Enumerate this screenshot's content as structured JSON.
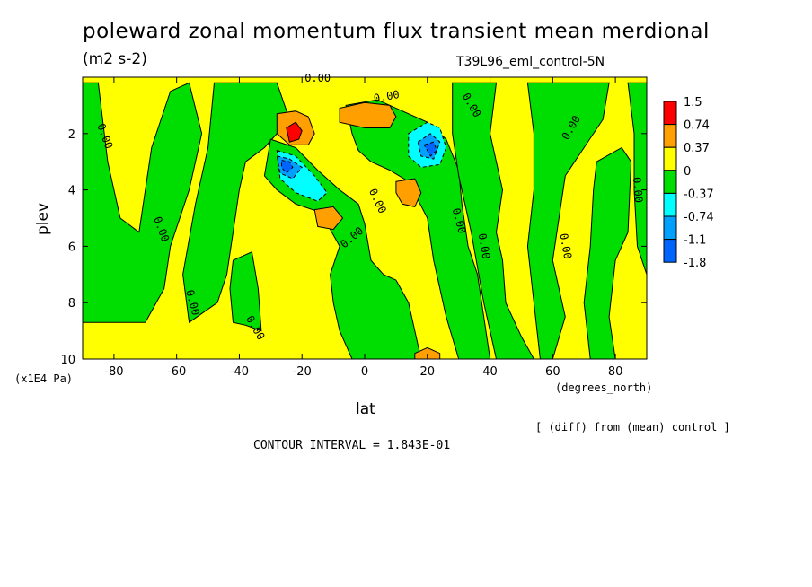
{
  "title": "poleward zonal momentum flux transient mean merdional",
  "units": "(m2 s-2)",
  "run_name": "T39L96_eml_control-5N",
  "y_units": "(x1E4 Pa)",
  "x_units": "(degrees_north)",
  "diff_note": "[ (diff) from (mean) control ]",
  "contour_interval": "CONTOUR INTERVAL = 1.843E-01",
  "chart_data": {
    "type": "heatmap",
    "title": "poleward zonal momentum flux transient mean merdional",
    "xlabel": "lat",
    "ylabel": "plev",
    "xlim": [
      -90,
      90
    ],
    "ylim": [
      10,
      0
    ],
    "x_ticks": [
      -80,
      -60,
      -40,
      -20,
      0,
      20,
      40,
      60,
      80
    ],
    "y_ticks": [
      2,
      4,
      6,
      8,
      10
    ],
    "colorbar": {
      "levels": [
        "1.5",
        "0.74",
        "0.37",
        "0",
        "-0.37",
        "-0.74",
        "-1.1",
        "-1.8"
      ],
      "colors": [
        "#ff0000",
        "#ffa000",
        "#ffff00",
        "#00dd00",
        "#00ffff",
        "#00a0ff",
        "#0064ff",
        "#ffffff"
      ],
      "boxes": [
        {
          "color": "#ff0000"
        },
        {
          "color": "#ffa000"
        },
        {
          "color": "#ffff00"
        },
        {
          "color": "#00dd00"
        },
        {
          "color": "#00ffff"
        },
        {
          "color": "#00a0ff"
        },
        {
          "color": "#0064ff"
        }
      ]
    },
    "regions": [
      {
        "level": "lt0",
        "color": "#00dd00",
        "poly": [
          [
            -90,
            0.2
          ],
          [
            -85,
            0.2
          ],
          [
            -82,
            3
          ],
          [
            -78,
            5
          ],
          [
            -72,
            5.5
          ],
          [
            -68,
            2.5
          ],
          [
            -62,
            0.5
          ],
          [
            -56,
            0.2
          ],
          [
            -52,
            2
          ],
          [
            -56,
            4
          ],
          [
            -62,
            6
          ],
          [
            -64,
            7.5
          ],
          [
            -70,
            8.7
          ],
          [
            -90,
            8.7
          ]
        ]
      },
      {
        "level": "lt0",
        "color": "#00dd00",
        "poly": [
          [
            -48,
            0.2
          ],
          [
            -28,
            0.2
          ],
          [
            -24,
            1.5
          ],
          [
            -32,
            2.5
          ],
          [
            -38,
            3
          ],
          [
            -40,
            4
          ],
          [
            -42,
            5.5
          ],
          [
            -44,
            7
          ],
          [
            -47,
            8
          ],
          [
            -56,
            8.7
          ],
          [
            -58,
            7
          ],
          [
            -54,
            4.5
          ],
          [
            -50,
            2.5
          ]
        ]
      },
      {
        "level": "lt0",
        "color": "#00dd00",
        "poly": [
          [
            -42,
            6.5
          ],
          [
            -36,
            6.2
          ],
          [
            -34,
            7.5
          ],
          [
            -33,
            9
          ],
          [
            -38,
            8.8
          ],
          [
            -42,
            8.7
          ],
          [
            -43,
            7.5
          ]
        ]
      },
      {
        "level": "lt0",
        "color": "#00dd00",
        "poly": [
          [
            -30,
            2.2
          ],
          [
            -22,
            2.5
          ],
          [
            -15,
            3.3
          ],
          [
            -8,
            4
          ],
          [
            -2,
            4.5
          ],
          [
            0,
            5.2
          ],
          [
            2,
            6.5
          ],
          [
            6,
            7
          ],
          [
            10,
            7.2
          ],
          [
            14,
            8
          ],
          [
            16,
            9
          ],
          [
            18,
            10
          ],
          [
            -4,
            10
          ],
          [
            -8,
            9
          ],
          [
            -10,
            8
          ],
          [
            -11,
            7
          ],
          [
            -8,
            6
          ],
          [
            -14,
            4.8
          ],
          [
            -22,
            4.5
          ],
          [
            -28,
            4
          ],
          [
            -32,
            3.5
          ]
        ]
      },
      {
        "level": "lt0",
        "color": "#00dd00",
        "poly": [
          [
            -6,
            1
          ],
          [
            4,
            0.8
          ],
          [
            12,
            1.2
          ],
          [
            20,
            1.6
          ],
          [
            26,
            2.2
          ],
          [
            30,
            3.3
          ],
          [
            31,
            4.5
          ],
          [
            33,
            6
          ],
          [
            36,
            7
          ],
          [
            38,
            8.5
          ],
          [
            40,
            10
          ],
          [
            30,
            10
          ],
          [
            26,
            8.5
          ],
          [
            22,
            6.5
          ],
          [
            20,
            5
          ],
          [
            14,
            3.7
          ],
          [
            8,
            3.3
          ],
          [
            2,
            3
          ],
          [
            -2,
            2.6
          ],
          [
            -4,
            2
          ]
        ]
      },
      {
        "level": "lt0",
        "color": "#00dd00",
        "poly": [
          [
            28,
            0.2
          ],
          [
            42,
            0.2
          ],
          [
            40,
            2
          ],
          [
            44,
            4
          ],
          [
            42,
            5.5
          ],
          [
            44,
            6.5
          ],
          [
            45,
            8
          ],
          [
            50,
            9.2
          ],
          [
            54,
            10
          ],
          [
            42,
            10
          ],
          [
            38,
            8
          ],
          [
            34,
            5.5
          ],
          [
            30,
            3.5
          ],
          [
            28,
            2
          ]
        ]
      },
      {
        "level": "lt0",
        "color": "#00dd00",
        "poly": [
          [
            52,
            0.2
          ],
          [
            78,
            0.2
          ],
          [
            76,
            1.5
          ],
          [
            70,
            2.5
          ],
          [
            64,
            3.5
          ],
          [
            62,
            5
          ],
          [
            60,
            6.5
          ],
          [
            62,
            7.5
          ],
          [
            64,
            8.5
          ],
          [
            60,
            10
          ],
          [
            56,
            10
          ],
          [
            54,
            8
          ],
          [
            52,
            6
          ],
          [
            54,
            4
          ],
          [
            54,
            2
          ]
        ]
      },
      {
        "level": "lt0",
        "color": "#00dd00",
        "poly": [
          [
            74,
            3
          ],
          [
            82,
            2.5
          ],
          [
            85,
            3
          ],
          [
            84,
            5.5
          ],
          [
            80,
            6.5
          ],
          [
            78,
            8.5
          ],
          [
            80,
            10
          ],
          [
            72,
            10
          ],
          [
            70,
            8
          ],
          [
            72,
            6
          ],
          [
            73,
            4
          ]
        ]
      },
      {
        "level": "lt0",
        "color": "#00dd00",
        "poly": [
          [
            84,
            0.2
          ],
          [
            90,
            0.2
          ],
          [
            90,
            7
          ],
          [
            87,
            6
          ],
          [
            86,
            4
          ],
          [
            86,
            2
          ]
        ]
      },
      {
        "level": "lt_neg037",
        "color": "#00ffff",
        "poly": [
          [
            -28,
            2.6
          ],
          [
            -22,
            2.8
          ],
          [
            -16,
            3.5
          ],
          [
            -12,
            4.1
          ],
          [
            -15,
            4.4
          ],
          [
            -22,
            4.1
          ],
          [
            -27,
            3.6
          ]
        ]
      },
      {
        "level": "lt_neg074",
        "color": "#00a0ff",
        "poly": [
          [
            -28,
            2.8
          ],
          [
            -24,
            2.9
          ],
          [
            -20,
            3.2
          ],
          [
            -23,
            3.6
          ],
          [
            -27,
            3.4
          ]
        ]
      },
      {
        "level": "lt_neg11",
        "color": "#0064ff",
        "poly": [
          [
            -26.5,
            2.95
          ],
          [
            -24,
            3
          ],
          [
            -23,
            3.2
          ],
          [
            -25,
            3.4
          ],
          [
            -26.5,
            3.2
          ]
        ]
      },
      {
        "level": "lt_neg037",
        "color": "#00ffff",
        "poly": [
          [
            14,
            2.0
          ],
          [
            20,
            1.6
          ],
          [
            24,
            1.8
          ],
          [
            26,
            2.5
          ],
          [
            24,
            3.1
          ],
          [
            18,
            3.2
          ],
          [
            14,
            2.8
          ]
        ]
      },
      {
        "level": "lt_neg074",
        "color": "#00a0ff",
        "poly": [
          [
            17,
            2.3
          ],
          [
            21,
            2.0
          ],
          [
            24,
            2.3
          ],
          [
            22,
            2.9
          ],
          [
            18,
            2.8
          ]
        ]
      },
      {
        "level": "lt_neg11",
        "color": "#0064ff",
        "poly": [
          [
            19,
            2.4
          ],
          [
            22,
            2.3
          ],
          [
            23,
            2.6
          ],
          [
            21,
            2.8
          ]
        ]
      },
      {
        "level": "gt037",
        "color": "#ffa000",
        "poly": [
          [
            -28,
            1.3
          ],
          [
            -22,
            1.2
          ],
          [
            -18,
            1.4
          ],
          [
            -16,
            2.0
          ],
          [
            -18,
            2.4
          ],
          [
            -24,
            2.4
          ],
          [
            -28,
            2.0
          ]
        ]
      },
      {
        "level": "gt074",
        "color": "#ff0000",
        "poly": [
          [
            -25,
            1.8
          ],
          [
            -22,
            1.6
          ],
          [
            -20,
            1.9
          ],
          [
            -21,
            2.2
          ],
          [
            -24,
            2.3
          ]
        ]
      },
      {
        "level": "gt037",
        "color": "#ffa000",
        "poly": [
          [
            -8,
            1.1
          ],
          [
            0,
            0.9
          ],
          [
            8,
            1.0
          ],
          [
            10,
            1.4
          ],
          [
            8,
            1.8
          ],
          [
            0,
            1.8
          ],
          [
            -8,
            1.6
          ]
        ]
      },
      {
        "level": "gt037",
        "color": "#ffa000",
        "poly": [
          [
            10,
            3.7
          ],
          [
            16,
            3.6
          ],
          [
            18,
            4.1
          ],
          [
            16,
            4.6
          ],
          [
            12,
            4.5
          ],
          [
            10,
            4.1
          ]
        ]
      },
      {
        "level": "gt037",
        "color": "#ffa000",
        "poly": [
          [
            -16,
            4.7
          ],
          [
            -10,
            4.6
          ],
          [
            -7,
            5.0
          ],
          [
            -10,
            5.4
          ],
          [
            -15,
            5.3
          ]
        ]
      },
      {
        "level": "gt037",
        "color": "#ffa000",
        "poly": [
          [
            16,
            9.8
          ],
          [
            20,
            9.6
          ],
          [
            24,
            9.8
          ],
          [
            24,
            10
          ],
          [
            16,
            10
          ]
        ]
      }
    ],
    "zero_labels": [
      {
        "text": "0.00",
        "x": -83,
        "y": 2.1,
        "rot": 70
      },
      {
        "text": "0.00",
        "x": -65,
        "y": 5.4,
        "rot": 70
      },
      {
        "text": "0.00",
        "x": -55,
        "y": 8.0,
        "rot": 75
      },
      {
        "text": "0.00",
        "x": -35,
        "y": 8.9,
        "rot": 60
      },
      {
        "text": "0.00",
        "x": -15,
        "y": 0.05,
        "rot": 0
      },
      {
        "text": "0.00",
        "x": 7,
        "y": 0.7,
        "rot": -10
      },
      {
        "text": "0.00",
        "x": 34,
        "y": 1.0,
        "rot": 60
      },
      {
        "text": "0.00",
        "x": 4,
        "y": 4.4,
        "rot": 65
      },
      {
        "text": "0.00",
        "x": -4,
        "y": 5.7,
        "rot": -40
      },
      {
        "text": "0.00",
        "x": 30,
        "y": 5.1,
        "rot": 75
      },
      {
        "text": "0.00",
        "x": 38,
        "y": 6.0,
        "rot": 80
      },
      {
        "text": "0.00",
        "x": 66,
        "y": 1.8,
        "rot": -60
      },
      {
        "text": "0.00",
        "x": 64,
        "y": 6.0,
        "rot": 80
      },
      {
        "text": "0.00",
        "x": 87,
        "y": 4.0,
        "rot": 85
      }
    ]
  }
}
